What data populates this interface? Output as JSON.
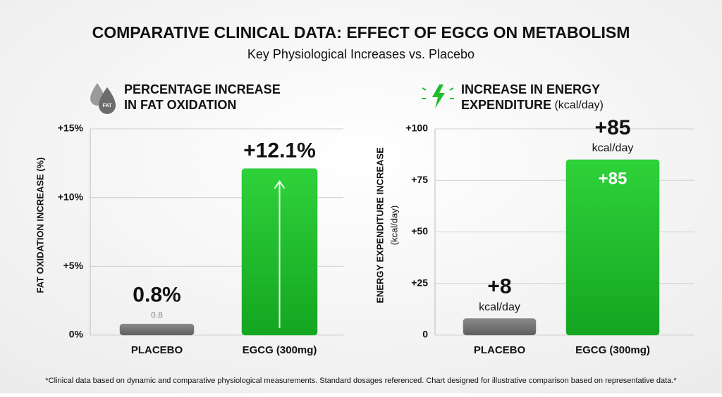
{
  "header": {
    "title": "COMPARATIVE CLINICAL DATA: EFFECT OF EGCG ON METABOLISM",
    "subtitle": "Key Physiological Increases vs. Placebo"
  },
  "chart_data": [
    {
      "type": "bar",
      "title": "PERCENTAGE INCREASE IN FAT OXIDATION",
      "icon_label": "FAT",
      "y_label": "FAT OXIDATION INCREASE (%)",
      "categories": [
        "PLACEBO",
        "EGCG (300mg)"
      ],
      "values": [
        0.8,
        12.1
      ],
      "value_labels": [
        "0.8%",
        "+12.1%"
      ],
      "inner_value_labels": [
        "0.8",
        null
      ],
      "colors": [
        "#7c7c7c",
        "#1fbd2b"
      ],
      "ylim": [
        0,
        15
      ],
      "yticks": [
        {
          "value": 0,
          "label": "0%"
        },
        {
          "value": 5,
          "label": "+5%"
        },
        {
          "value": 10,
          "label": "+10%"
        },
        {
          "value": 15,
          "label": "+15%"
        }
      ],
      "grid": true
    },
    {
      "type": "bar",
      "title": "INCREASE IN ENERGY EXPENDITURE",
      "title_unit": "(kcal/day)",
      "y_label": "ENERGY EXPENDITURE INCREASE",
      "y_label_unit": "(kcal/day)",
      "categories": [
        "PLACEBO",
        "EGCG (300mg)"
      ],
      "values": [
        8,
        85
      ],
      "value_labels": [
        "+8",
        "+85"
      ],
      "value_unit": "kcal/day",
      "inner_value_labels": [
        null,
        "+85"
      ],
      "colors": [
        "#7c7c7c",
        "#1fbd2b"
      ],
      "ylim": [
        0,
        100
      ],
      "yticks": [
        0,
        {
          "value": 25,
          "label": "+25"
        },
        {
          "value": 50,
          "label": "+50"
        },
        {
          "value": 75,
          "label": "+75"
        },
        {
          "value": 100,
          "label": "+100"
        }
      ],
      "grid": true
    }
  ],
  "footnote": "*Clinical data based on dynamic and comparative physiological measurements. Standard dosages referenced. Chart designed for illustrative comparison based on representative data.*"
}
